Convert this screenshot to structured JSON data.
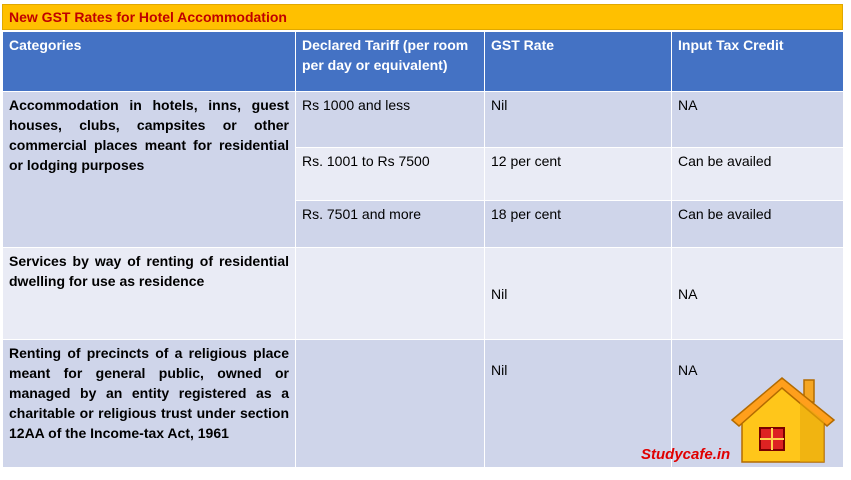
{
  "title": "New GST Rates for Hotel Accommodation",
  "table": {
    "headers": [
      "Categories",
      "Declared Tariff (per room per day or equivalent)",
      "GST Rate",
      "Input Tax Credit"
    ],
    "rows": [
      {
        "category": "Accommodation in hotels, inns, guest houses, clubs, campsites or other commercial places meant for residential or lodging purposes",
        "tiers": [
          {
            "tariff": "Rs 1000 and less",
            "rate": "Nil",
            "itc": "NA"
          },
          {
            "tariff": "Rs. 1001 to Rs 7500",
            "rate": "12 per cent",
            "itc": "Can be availed"
          },
          {
            "tariff": "Rs. 7501 and more",
            "rate": "18 per cent",
            "itc": "Can be availed"
          }
        ]
      },
      {
        "category": "Services by way of renting of residential dwelling for use as residence",
        "tariff": "",
        "rate": "Nil",
        "itc": "NA"
      },
      {
        "category": "Renting of precincts of a religious place meant for general public, owned or managed by an entity registered as a charitable or religious trust under section 12AA of the Income-tax Act, 1961",
        "tariff": "",
        "rate": "Nil",
        "itc": "NA"
      }
    ]
  },
  "watermark": "Studycafe.in",
  "colors": {
    "title_bg": "#ffc000",
    "title_text": "#c00000",
    "header_bg": "#4472c4",
    "row_dark": "#cfd5ea",
    "row_light": "#e9ebf5",
    "watermark": "#e00000"
  },
  "icons": [
    "house-icon"
  ]
}
